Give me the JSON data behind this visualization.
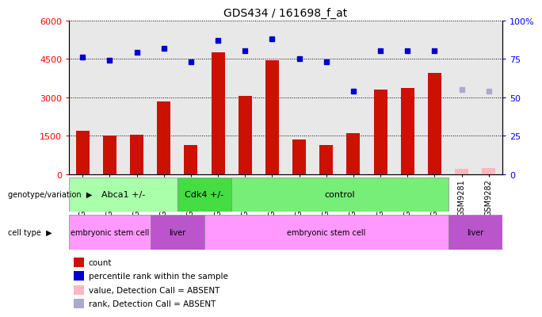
{
  "title": "GDS434 / 161698_f_at",
  "samples": [
    "GSM9269",
    "GSM9270",
    "GSM9271",
    "GSM9283",
    "GSM9284",
    "GSM9278",
    "GSM9279",
    "GSM9280",
    "GSM9272",
    "GSM9273",
    "GSM9274",
    "GSM9275",
    "GSM9276",
    "GSM9277",
    "GSM9281",
    "GSM9282"
  ],
  "counts": [
    1700,
    1500,
    1550,
    2850,
    1150,
    4750,
    3050,
    4450,
    1350,
    1150,
    1600,
    3300,
    3350,
    3950,
    200,
    230
  ],
  "ranks": [
    76,
    74,
    79,
    82,
    73,
    87,
    80,
    88,
    75,
    73,
    54,
    80,
    80,
    80,
    null,
    null
  ],
  "absent_counts": [
    null,
    null,
    null,
    null,
    null,
    null,
    null,
    null,
    null,
    null,
    null,
    null,
    null,
    null,
    200,
    230
  ],
  "absent_ranks": [
    null,
    null,
    null,
    null,
    null,
    null,
    null,
    null,
    null,
    null,
    null,
    null,
    null,
    null,
    55,
    54
  ],
  "groups": [
    {
      "label": "Abca1 +/-",
      "start": 0,
      "end": 4,
      "color": "#AAFFAA"
    },
    {
      "label": "Cdk4 +/-",
      "start": 4,
      "end": 6,
      "color": "#44DD44"
    },
    {
      "label": "control",
      "start": 6,
      "end": 14,
      "color": "#77EE77"
    }
  ],
  "cell_types": [
    {
      "label": "embryonic stem cell",
      "start": 0,
      "end": 3,
      "color": "#FF99FF"
    },
    {
      "label": "liver",
      "start": 3,
      "end": 5,
      "color": "#CC66DD"
    },
    {
      "label": "embryonic stem cell",
      "start": 5,
      "end": 14,
      "color": "#FF99FF"
    },
    {
      "label": "liver",
      "start": 14,
      "end": 16,
      "color": "#CC66DD"
    }
  ],
  "ylim_left": [
    0,
    6000
  ],
  "ylim_right": [
    0,
    100
  ],
  "yticks_left": [
    0,
    1500,
    3000,
    4500,
    6000
  ],
  "ytick_labels_left": [
    "0",
    "1500",
    "3000",
    "4500",
    "6000"
  ],
  "yticks_right": [
    0,
    25,
    50,
    75,
    100
  ],
  "ytick_labels_right": [
    "0",
    "25",
    "50",
    "75",
    "100%"
  ],
  "bar_color": "#CC1100",
  "absent_bar_color": "#FFB6C1",
  "rank_color": "#0000CC",
  "absent_rank_color": "#AAAACC",
  "bg_color": "#E8E8E8",
  "legend_items": [
    {
      "color": "#CC1100",
      "label": "count"
    },
    {
      "color": "#0000CC",
      "label": "percentile rank within the sample"
    },
    {
      "color": "#FFB6C1",
      "label": "value, Detection Call = ABSENT"
    },
    {
      "color": "#AAAACC",
      "label": "rank, Detection Call = ABSENT"
    }
  ]
}
